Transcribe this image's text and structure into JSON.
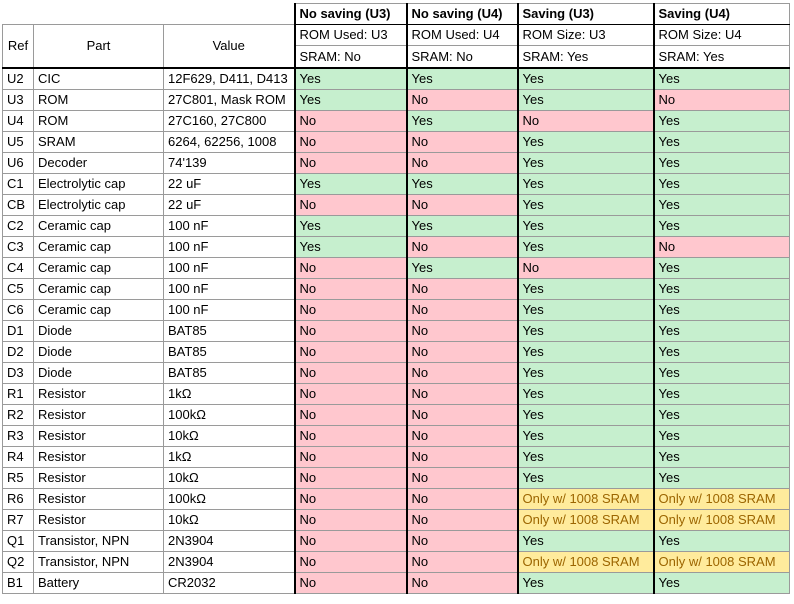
{
  "headers": {
    "ref": "Ref",
    "part": "Part",
    "value": "Value",
    "groups": [
      {
        "title": "No saving (U3)",
        "line1": "ROM Used: U3",
        "line2": "SRAM: No"
      },
      {
        "title": "No saving (U4)",
        "line1": "ROM Used: U4",
        "line2": "SRAM: No"
      },
      {
        "title": "Saving (U3)",
        "line1": "ROM Size: U3",
        "line2": "SRAM: Yes"
      },
      {
        "title": "Saving (U4)",
        "line1": "ROM Size: U4",
        "line2": "SRAM: Yes"
      }
    ]
  },
  "colors": {
    "yes_fill": "#c6efce",
    "yes_text": "#006100",
    "no_fill": "#ffc7ce",
    "no_text": "#9c0006",
    "conditional_fill": "#ffeb9c",
    "conditional_text": "#9c6500"
  },
  "rows": [
    {
      "ref": "U2",
      "part": "CIC",
      "value": "12F629, D411, D413",
      "cells": [
        "Yes",
        "Yes",
        "Yes",
        "Yes"
      ]
    },
    {
      "ref": "U3",
      "part": "ROM",
      "value": "27C801, Mask ROM",
      "cells": [
        "Yes",
        "No",
        "Yes",
        "No"
      ]
    },
    {
      "ref": "U4",
      "part": "ROM",
      "value": "27C160, 27C800",
      "cells": [
        "No",
        "Yes",
        "No",
        "Yes"
      ]
    },
    {
      "ref": "U5",
      "part": "SRAM",
      "value": "6264, 62256, 1008",
      "cells": [
        "No",
        "No",
        "Yes",
        "Yes"
      ]
    },
    {
      "ref": "U6",
      "part": "Decoder",
      "value": "74'139",
      "cells": [
        "No",
        "No",
        "Yes",
        "Yes"
      ]
    },
    {
      "ref": "C1",
      "part": "Electrolytic cap",
      "value": "22 uF",
      "cells": [
        "Yes",
        "Yes",
        "Yes",
        "Yes"
      ]
    },
    {
      "ref": "CB",
      "part": "Electrolytic cap",
      "value": "22 uF",
      "cells": [
        "No",
        "No",
        "Yes",
        "Yes"
      ]
    },
    {
      "ref": "C2",
      "part": "Ceramic cap",
      "value": "100 nF",
      "cells": [
        "Yes",
        "Yes",
        "Yes",
        "Yes"
      ]
    },
    {
      "ref": "C3",
      "part": "Ceramic cap",
      "value": "100 nF",
      "cells": [
        "Yes",
        "No",
        "Yes",
        "No"
      ]
    },
    {
      "ref": "C4",
      "part": "Ceramic cap",
      "value": "100 nF",
      "cells": [
        "No",
        "Yes",
        "No",
        "Yes"
      ]
    },
    {
      "ref": "C5",
      "part": "Ceramic cap",
      "value": "100 nF",
      "cells": [
        "No",
        "No",
        "Yes",
        "Yes"
      ]
    },
    {
      "ref": "C6",
      "part": "Ceramic cap",
      "value": "100 nF",
      "cells": [
        "No",
        "No",
        "Yes",
        "Yes"
      ]
    },
    {
      "ref": "D1",
      "part": "Diode",
      "value": "BAT85",
      "cells": [
        "No",
        "No",
        "Yes",
        "Yes"
      ]
    },
    {
      "ref": "D2",
      "part": "Diode",
      "value": "BAT85",
      "cells": [
        "No",
        "No",
        "Yes",
        "Yes"
      ]
    },
    {
      "ref": "D3",
      "part": "Diode",
      "value": "BAT85",
      "cells": [
        "No",
        "No",
        "Yes",
        "Yes"
      ]
    },
    {
      "ref": "R1",
      "part": "Resistor",
      "value": "1kΩ",
      "cells": [
        "No",
        "No",
        "Yes",
        "Yes"
      ]
    },
    {
      "ref": "R2",
      "part": "Resistor",
      "value": "100kΩ",
      "cells": [
        "No",
        "No",
        "Yes",
        "Yes"
      ]
    },
    {
      "ref": "R3",
      "part": "Resistor",
      "value": "10kΩ",
      "cells": [
        "No",
        "No",
        "Yes",
        "Yes"
      ]
    },
    {
      "ref": "R4",
      "part": "Resistor",
      "value": "1kΩ",
      "cells": [
        "No",
        "No",
        "Yes",
        "Yes"
      ]
    },
    {
      "ref": "R5",
      "part": "Resistor",
      "value": "10kΩ",
      "cells": [
        "No",
        "No",
        "Yes",
        "Yes"
      ]
    },
    {
      "ref": "R6",
      "part": "Resistor",
      "value": "100kΩ",
      "cells": [
        "No",
        "No",
        "Only w/ 1008 SRAM",
        "Only w/ 1008 SRAM"
      ]
    },
    {
      "ref": "R7",
      "part": "Resistor",
      "value": "10kΩ",
      "cells": [
        "No",
        "No",
        "Only w/ 1008 SRAM",
        "Only w/ 1008 SRAM"
      ]
    },
    {
      "ref": "Q1",
      "part": "Transistor, NPN",
      "value": "2N3904",
      "cells": [
        "No",
        "No",
        "Yes",
        "Yes"
      ]
    },
    {
      "ref": "Q2",
      "part": "Transistor, NPN",
      "value": "2N3904",
      "cells": [
        "No",
        "No",
        "Only w/ 1008 SRAM",
        "Only w/ 1008 SRAM"
      ]
    },
    {
      "ref": "B1",
      "part": "Battery",
      "value": "CR2032",
      "cells": [
        "No",
        "No",
        "Yes",
        "Yes"
      ]
    }
  ]
}
